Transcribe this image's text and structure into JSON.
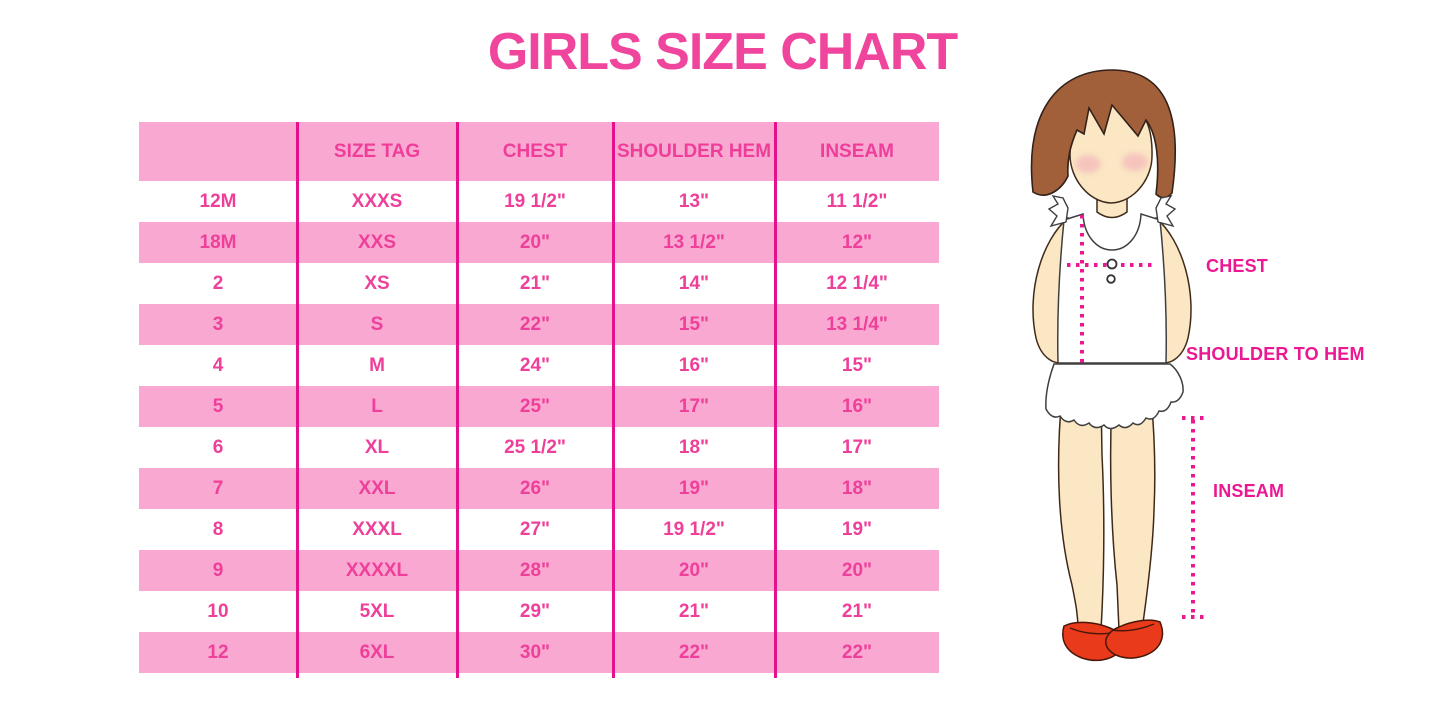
{
  "page": {
    "title": "GIRLS SIZE CHART"
  },
  "colors": {
    "title_pink": "#F0459D",
    "row_pink": "#F9A9D1",
    "table_text_pink": "#EE3F9A",
    "divider_magenta": "#E5108C",
    "measure_magenta": "#EC1892",
    "skin": "#FBE7C4",
    "hair_brown": "#A2603A",
    "shoe_red": "#E93A1C"
  },
  "chart_data": {
    "type": "table",
    "title": "GIRLS SIZE CHART",
    "columns": [
      "",
      "SIZE TAG",
      "CHEST",
      "SHOULDER HEM",
      "INSEAM"
    ],
    "rows": [
      [
        "12M",
        "XXXS",
        "19 1/2\"",
        "13\"",
        "11 1/2\""
      ],
      [
        "18M",
        "XXS",
        "20\"",
        "13 1/2\"",
        "12\""
      ],
      [
        "2",
        "XS",
        "21\"",
        "14\"",
        "12 1/4\""
      ],
      [
        "3",
        "S",
        "22\"",
        "15\"",
        "13 1/4\""
      ],
      [
        "4",
        "M",
        "24\"",
        "16\"",
        "15\""
      ],
      [
        "5",
        "L",
        "25\"",
        "17\"",
        "16\""
      ],
      [
        "6",
        "XL",
        "25 1/2\"",
        "18\"",
        "17\""
      ],
      [
        "7",
        "XXL",
        "26\"",
        "19\"",
        "18\""
      ],
      [
        "8",
        "XXXL",
        "27\"",
        "19 1/2\"",
        "19\""
      ],
      [
        "9",
        "XXXXL",
        "28\"",
        "20\"",
        "20\""
      ],
      [
        "10",
        "5XL",
        "29\"",
        "21\"",
        "21\""
      ],
      [
        "12",
        "6XL",
        "30\"",
        "22\"",
        "22\""
      ]
    ],
    "layout_hints": {
      "header_background": "pink",
      "row_striping": "white/pink alternating starting white",
      "grid": "vertical magenta column dividers only"
    }
  },
  "figure": {
    "labels": {
      "chest": "CHEST",
      "shoulder_to_hem": "SHOULDER TO HEM",
      "inseam": "INSEAM"
    }
  }
}
